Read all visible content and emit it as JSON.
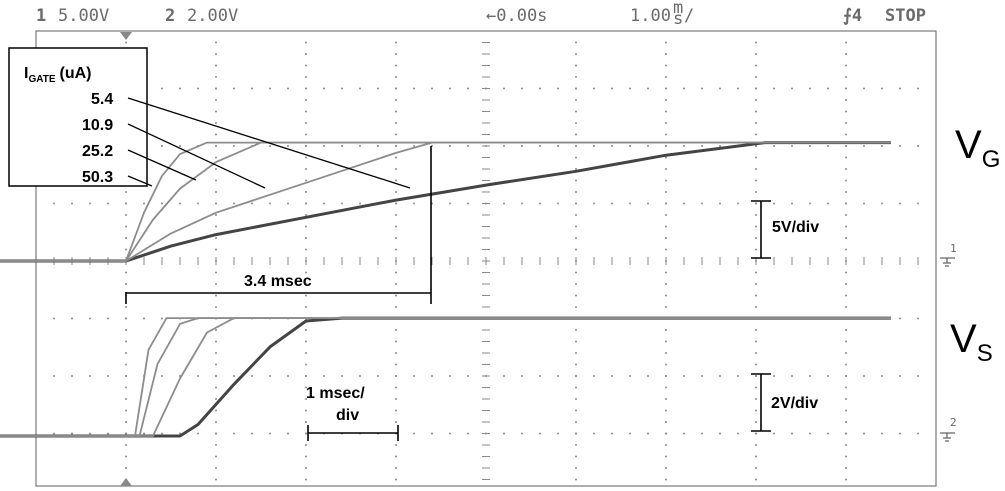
{
  "status_bar": {
    "ch1_num": "1",
    "ch1_scale": "5.00V",
    "ch2_num": "2",
    "ch2_scale": "2.00V",
    "time_ref": "←0.00s",
    "timebase_num": "1.00",
    "timebase_unit": "m",
    "timebase_sub": "s",
    "timebase_suffix": "/",
    "trigger": "⨍4",
    "run_state": "STOP"
  },
  "legend": {
    "title_i": "I",
    "title_sub": "GATE",
    "title_unit": "(uA)",
    "currents": [
      "5.4",
      "10.9",
      "25.2",
      "50.3"
    ]
  },
  "annotations": {
    "rise_time": "3.4 msec",
    "vg_scale": "5V/div",
    "vs_scale": "2V/div",
    "time_div_line1": "1 msec/",
    "time_div_line2": "div"
  },
  "trace_labels": {
    "vg_main": "V",
    "vg_sub": "G",
    "vs_main": "V",
    "vs_sub": "S"
  },
  "markers": {
    "ch1": "1",
    "ch2": "2"
  },
  "chart_data": {
    "type": "line",
    "title": "",
    "xlabel": "",
    "ylabel": "",
    "x_unit": "ms",
    "xlim": [
      -1.5,
      8.5
    ],
    "grid": true,
    "series": [
      {
        "name": "5.4",
        "trace": "VG",
        "x": [
          -1.5,
          0,
          0.5,
          1,
          2,
          3,
          4,
          5,
          6,
          7.1,
          8.5
        ],
        "y": [
          0,
          0,
          1.3,
          2.3,
          3.8,
          5.3,
          6.6,
          7.8,
          9.2,
          10.3,
          10.3
        ]
      },
      {
        "name": "10.9",
        "trace": "VG",
        "x": [
          -1.5,
          0,
          0.5,
          1,
          2,
          3,
          3.4,
          8.5
        ],
        "y": [
          0,
          0,
          2.4,
          4.2,
          6.8,
          9.4,
          10.3,
          10.3
        ]
      },
      {
        "name": "25.2",
        "trace": "VG",
        "x": [
          -1.5,
          0,
          0.3,
          0.6,
          1,
          1.5,
          8.5
        ],
        "y": [
          0,
          0,
          3.6,
          6.3,
          8.6,
          10.3,
          10.3
        ]
      },
      {
        "name": "50.3",
        "trace": "VG",
        "x": [
          -1.5,
          0,
          0.2,
          0.4,
          0.6,
          0.9,
          8.5
        ],
        "y": [
          0,
          0,
          4.2,
          7.4,
          9.3,
          10.3,
          10.3
        ]
      },
      {
        "name": "5.4",
        "trace": "VS",
        "x": [
          -1.5,
          0.6,
          0.8,
          1.2,
          1.6,
          2,
          2.4,
          8.5
        ],
        "y": [
          0,
          0,
          0.4,
          1.8,
          3.1,
          4,
          4.1,
          4.1
        ]
      },
      {
        "name": "10.9",
        "trace": "VS",
        "x": [
          -1.5,
          0.3,
          0.6,
          0.9,
          1.2,
          8.5
        ],
        "y": [
          0,
          0,
          2,
          3.6,
          4.1,
          4.1
        ]
      },
      {
        "name": "25.2",
        "trace": "VS",
        "x": [
          -1.5,
          0.15,
          0.35,
          0.6,
          0.8,
          8.5
        ],
        "y": [
          0,
          0,
          2.5,
          3.9,
          4.1,
          4.1
        ]
      },
      {
        "name": "50.3",
        "trace": "VS",
        "x": [
          -1.5,
          0.1,
          0.25,
          0.45,
          8.5
        ],
        "y": [
          0,
          0,
          3,
          4.1,
          4.1
        ]
      }
    ]
  }
}
